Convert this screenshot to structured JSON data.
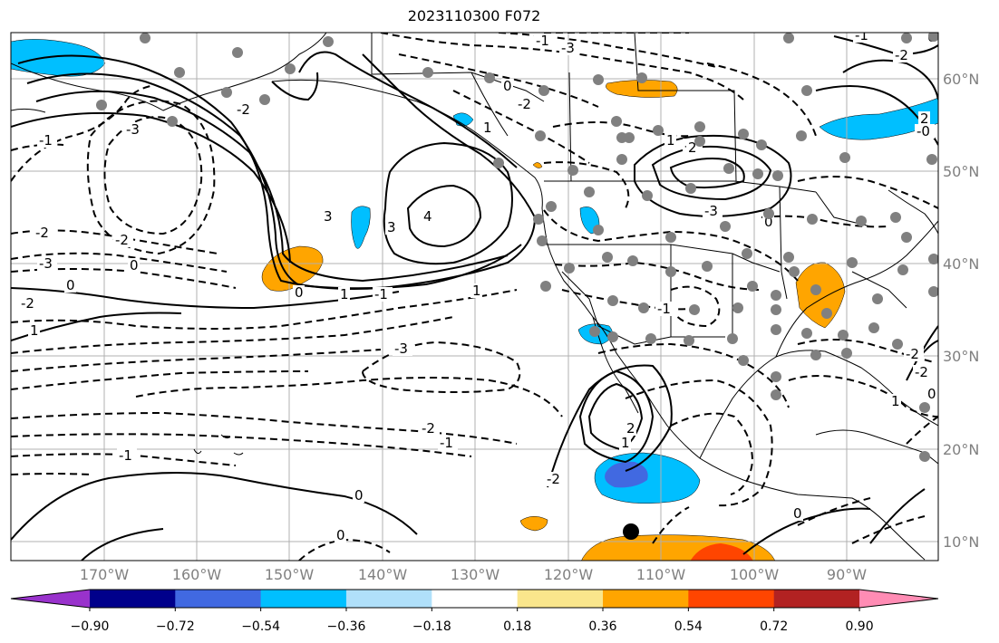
{
  "title": "2023110300 F072",
  "map": {
    "lon_labels": [
      "170°W",
      "160°W",
      "150°W",
      "140°W",
      "130°W",
      "120°W",
      "110°W",
      "100°W",
      "90°W"
    ],
    "lat_labels": [
      "60°N",
      "50°N",
      "40°N",
      "30°N",
      "20°N",
      "10°N"
    ],
    "contour_labels": [
      "-1",
      "-3",
      "-2",
      "-3",
      "-2",
      "-2",
      "0",
      "0",
      "-2",
      "1",
      "1",
      "-1",
      "-3",
      "-2",
      "-1",
      "-1",
      "0",
      "3",
      "3",
      "4",
      "1",
      "0",
      "0",
      "-2",
      "-1",
      "-3",
      "1",
      "-2",
      "-3",
      "0",
      "-1",
      "2",
      "1",
      "-2",
      "0",
      "0",
      "-2",
      "2",
      "1",
      "0",
      "-2",
      "-2",
      "-1",
      "0",
      "-0",
      "1",
      "2"
    ],
    "storm_marker": "tropical-cyclone-marker",
    "colors": {
      "positive_fill": "#ffa500",
      "strong_positive_fill": "#ff4500",
      "negative_fill": "#00bfff",
      "strong_negative_fill": "#4169e1",
      "station_dot": "#808080",
      "gridline": "#b0b0b0"
    }
  },
  "colorbar": {
    "tick_labels": [
      "−0.90",
      "−0.72",
      "−0.54",
      "−0.36",
      "−0.18",
      "0.18",
      "0.36",
      "0.54",
      "0.72",
      "0.90"
    ],
    "colors": [
      "#9932cc",
      "#00008b",
      "#4169e1",
      "#00bfff",
      "#b0e0fa",
      "#ffffff",
      "#fae68c",
      "#ffa500",
      "#ff4500",
      "#b22222",
      "#ff8cb4"
    ]
  }
}
